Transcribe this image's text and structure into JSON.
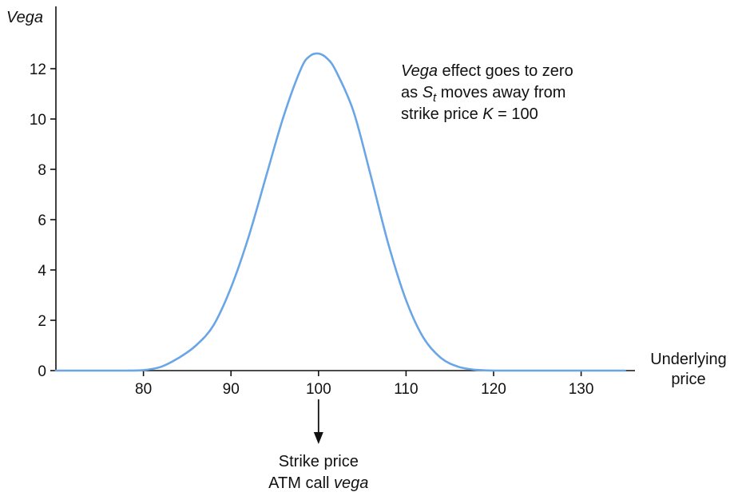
{
  "chart_data": {
    "type": "line",
    "title": "",
    "xlabel": [
      "Underlying",
      "price"
    ],
    "ylabel": "Vega",
    "xlim": [
      70,
      135
    ],
    "ylim": [
      0,
      13
    ],
    "x_ticks": [
      80,
      90,
      100,
      110,
      120,
      130
    ],
    "y_ticks": [
      0,
      2,
      4,
      6,
      8,
      10,
      12
    ],
    "grid": false,
    "legend": "none",
    "series": [
      {
        "color": "#6aa6e6",
        "x": [
          70,
          75,
          78,
          80,
          82,
          84,
          86,
          88,
          90,
          92,
          94,
          96,
          98,
          99,
          100,
          101,
          102,
          104,
          106,
          108,
          110,
          112,
          114,
          116,
          118,
          120,
          125,
          130,
          135
        ],
        "y": [
          0,
          0,
          0,
          0.02,
          0.15,
          0.5,
          1.0,
          1.8,
          3.3,
          5.3,
          7.7,
          10.1,
          12.0,
          12.5,
          12.6,
          12.4,
          11.9,
          10.3,
          7.7,
          5.0,
          2.8,
          1.3,
          0.5,
          0.15,
          0.03,
          0,
          0,
          0,
          0
        ]
      }
    ],
    "annotations": {
      "note_lines": [
        [
          {
            "text": "Vega",
            "italic": true
          },
          {
            "text": " effect goes to zero",
            "italic": false
          }
        ],
        [
          {
            "text": "as ",
            "italic": false
          },
          {
            "text": "S",
            "italic": true
          },
          {
            "text": "t",
            "italic": true,
            "sub": true
          },
          {
            "text": " moves away from",
            "italic": false
          }
        ],
        [
          {
            "text": "strike price ",
            "italic": false
          },
          {
            "text": "K",
            "italic": true
          },
          {
            "text": " = 100",
            "italic": false
          }
        ]
      ],
      "arrow_x": 100,
      "arrow_lines": [
        [
          {
            "text": "Strike price",
            "italic": false
          }
        ],
        [
          {
            "text": "ATM call ",
            "italic": false
          },
          {
            "text": "vega",
            "italic": true
          }
        ]
      ]
    }
  }
}
